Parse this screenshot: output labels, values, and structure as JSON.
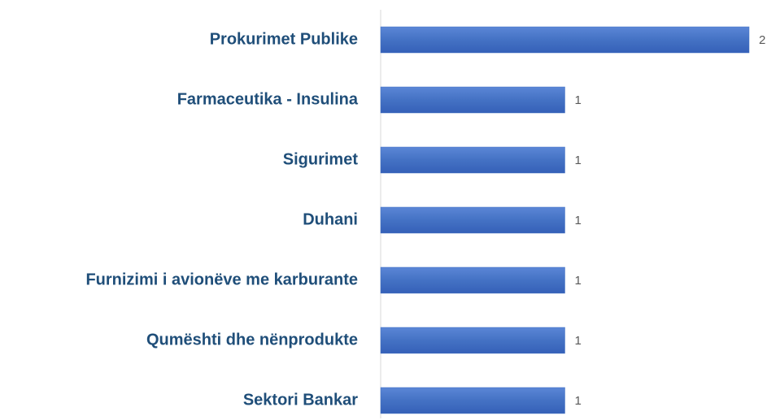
{
  "chart_data": {
    "type": "hbar",
    "categories": [
      "Prokurimet Publike",
      "Farmaceutika - Insulina",
      "Sigurimet",
      "Duhani",
      "Furnizimi i avionëve me karburante",
      "Qumështi dhe nënprodukte",
      "Sektori Bankar"
    ],
    "values": [
      2,
      1,
      1,
      1,
      1,
      1,
      1
    ],
    "color": "#4472c4"
  }
}
